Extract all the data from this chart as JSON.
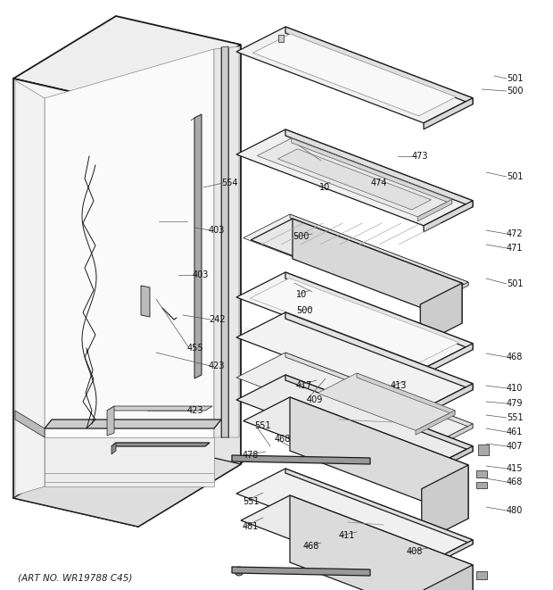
{
  "footer": "(ART NO. WR19788 C45)",
  "bg_color": "#ffffff",
  "line_color": "#1a1a1a",
  "fig_width": 6.2,
  "fig_height": 6.61,
  "dpi": 100,
  "lw_main": 0.9,
  "lw_thin": 0.5,
  "lw_thick": 1.3
}
